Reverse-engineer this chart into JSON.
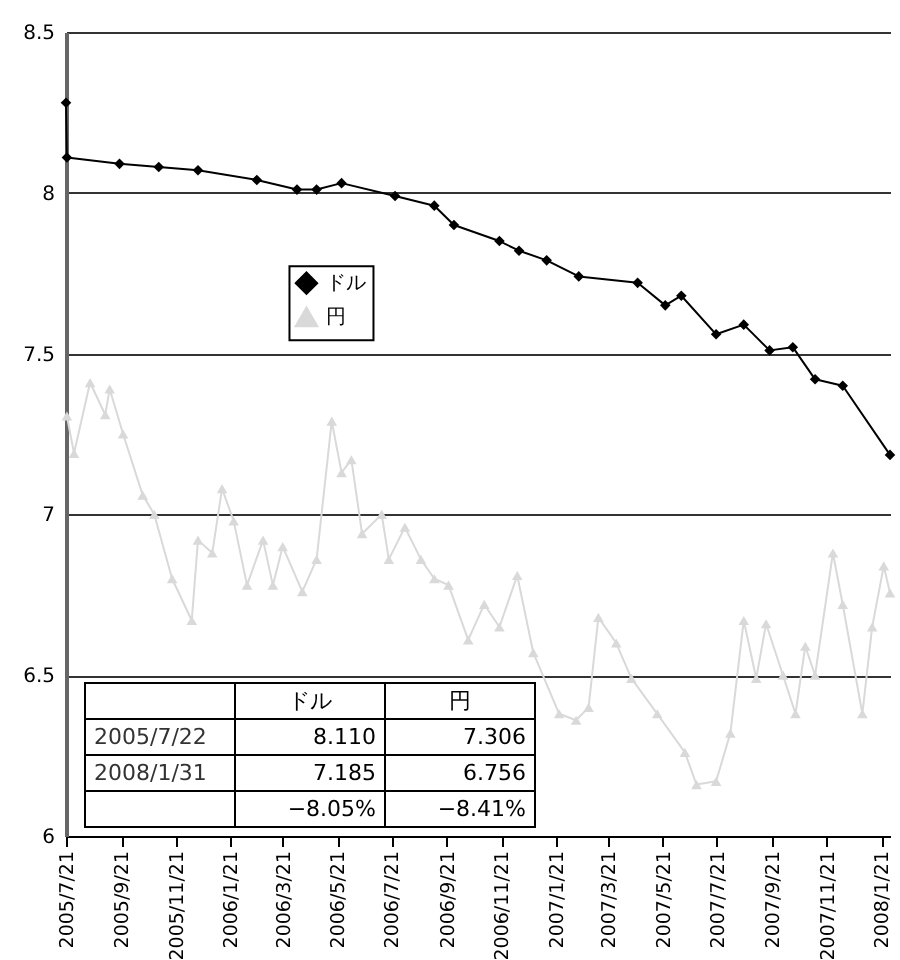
{
  "chart_data": {
    "type": "line",
    "xlim": [
      "2005-07-21",
      "2008-01-31"
    ],
    "xticks": [
      {
        "value": "2005-07-21",
        "label": "2005/7/21"
      },
      {
        "value": "2005-09-21",
        "label": "2005/9/21"
      },
      {
        "value": "2005-11-21",
        "label": "2005/11/21"
      },
      {
        "value": "2006-01-21",
        "label": "2006/1/21"
      },
      {
        "value": "2006-03-21",
        "label": "2006/3/21"
      },
      {
        "value": "2006-05-21",
        "label": "2006/5/21"
      },
      {
        "value": "2006-07-21",
        "label": "2006/7/21"
      },
      {
        "value": "2006-09-21",
        "label": "2006/9/21"
      },
      {
        "value": "2006-11-21",
        "label": "2006/11/21"
      },
      {
        "value": "2007-01-21",
        "label": "2007/1/21"
      },
      {
        "value": "2007-03-21",
        "label": "2007/3/21"
      },
      {
        "value": "2007-05-21",
        "label": "2007/5/21"
      },
      {
        "value": "2007-07-21",
        "label": "2007/7/21"
      },
      {
        "value": "2007-09-21",
        "label": "2007/9/21"
      },
      {
        "value": "2007-11-21",
        "label": "2007/11/21"
      },
      {
        "value": "2008-01-21",
        "label": "2008/1/21"
      }
    ],
    "ylim": [
      6,
      8.5
    ],
    "yticks": [
      6,
      6.5,
      7,
      7.5,
      8,
      8.5
    ],
    "grid": "y",
    "legend": "top left",
    "line_style": "solid",
    "series": [
      {
        "name": "ドル",
        "color": "#000000",
        "marker": "diamond",
        "x": [
          "2005-07-21",
          "2005-07-22",
          "2005-09-19",
          "2005-11-02",
          "2005-12-16",
          "2006-02-20",
          "2006-04-06",
          "2006-04-28",
          "2006-05-26",
          "2006-07-25",
          "2006-09-07",
          "2006-09-29",
          "2006-11-19",
          "2006-12-11",
          "2007-01-11",
          "2007-02-16",
          "2007-04-23",
          "2007-05-24",
          "2007-06-11",
          "2007-07-20",
          "2007-08-20",
          "2007-09-18",
          "2007-10-14",
          "2007-11-08",
          "2007-12-09",
          "2008-01-31"
        ],
        "values": [
          8.28,
          8.11,
          8.09,
          8.08,
          8.07,
          8.04,
          8.01,
          8.01,
          8.03,
          7.99,
          7.96,
          7.9,
          7.85,
          7.82,
          7.79,
          7.74,
          7.72,
          7.65,
          7.68,
          7.56,
          7.59,
          7.51,
          7.52,
          7.42,
          7.4,
          7.185
        ]
      },
      {
        "name": "円",
        "color": "#d9d9d9",
        "marker": "triangle",
        "x": [
          "2005-07-22",
          "2005-07-30",
          "2005-08-17",
          "2005-09-03",
          "2005-09-08",
          "2005-09-23",
          "2005-10-15",
          "2005-10-28",
          "2005-11-17",
          "2005-12-09",
          "2005-12-16",
          "2006-01-01",
          "2006-01-12",
          "2006-01-25",
          "2006-02-09",
          "2006-02-27",
          "2006-03-10",
          "2006-03-21",
          "2006-04-12",
          "2006-04-28",
          "2006-05-15",
          "2006-05-26",
          "2006-06-06",
          "2006-06-18",
          "2006-07-10",
          "2006-07-18",
          "2006-08-05",
          "2006-08-23",
          "2006-09-07",
          "2006-09-23",
          "2006-10-15",
          "2006-11-02",
          "2006-11-19",
          "2006-12-09",
          "2006-12-27",
          "2007-01-25",
          "2007-02-13",
          "2007-02-27",
          "2007-03-10",
          "2007-03-30",
          "2007-04-16",
          "2007-05-15",
          "2007-06-15",
          "2007-06-28",
          "2007-07-20",
          "2007-08-05",
          "2007-08-20",
          "2007-09-03",
          "2007-09-14",
          "2007-10-03",
          "2007-10-17",
          "2007-10-28",
          "2007-11-08",
          "2007-11-28",
          "2007-12-09",
          "2007-12-31",
          "2008-01-11",
          "2008-01-24",
          "2008-01-31"
        ],
        "values": [
          7.306,
          7.19,
          7.41,
          7.31,
          7.39,
          7.25,
          7.06,
          7.0,
          6.8,
          6.67,
          6.92,
          6.88,
          7.08,
          6.98,
          6.78,
          6.92,
          6.78,
          6.9,
          6.76,
          6.86,
          7.29,
          7.13,
          7.17,
          6.94,
          7.0,
          6.86,
          6.96,
          6.86,
          6.8,
          6.78,
          6.61,
          6.72,
          6.65,
          6.81,
          6.57,
          6.38,
          6.36,
          6.4,
          6.68,
          6.6,
          6.49,
          6.38,
          6.26,
          6.16,
          6.17,
          6.32,
          6.67,
          6.49,
          6.66,
          6.5,
          6.38,
          6.59,
          6.5,
          6.88,
          6.72,
          6.38,
          6.65,
          6.84,
          6.756
        ]
      }
    ],
    "annotations": [
      "ドル",
      "円",
      "2005/7/22",
      "8.110",
      "7.306",
      "2008/1/31",
      "7.185",
      "6.756",
      "−8.05%",
      "−8.41%"
    ]
  }
}
